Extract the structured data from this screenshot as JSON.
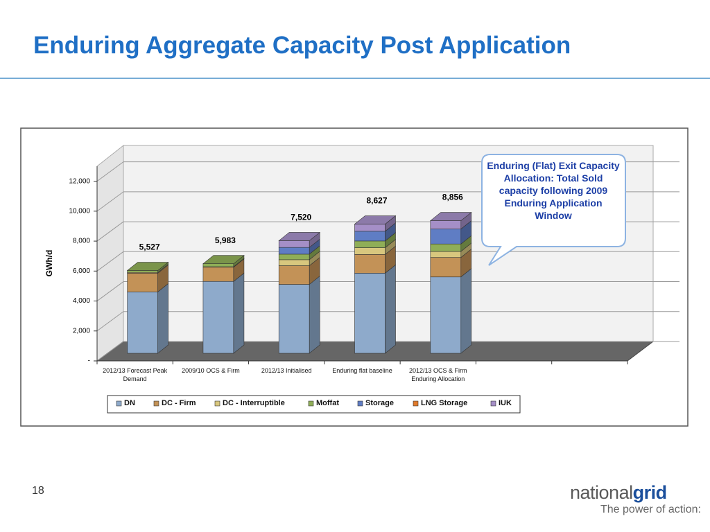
{
  "slide": {
    "title": "Enduring Aggregate Capacity Post Application",
    "page_number": "18",
    "logo": {
      "brand_light": "national",
      "brand_bold": "grid",
      "tagline": "The power of action:"
    }
  },
  "chart_data": {
    "type": "stacked_bar_3d",
    "y_label": "GWh/d",
    "callout": "Enduring (Flat) Exit Capacity Allocation: Total Sold capacity following 2009 Enduring Application Window",
    "categories": [
      "2012/13 Forecast Peak Demand",
      "2009/10 OCS & Firm",
      "2012/13 Initialised",
      "Enduring flat baseline",
      "2012/13 OCS & Firm Enduring Allocation",
      null,
      null
    ],
    "series": [
      {
        "name": "DN",
        "color": "#8eaacb",
        "values": [
          4100,
          4800,
          4600,
          5350,
          5100,
          null,
          null
        ]
      },
      {
        "name": "DC - Firm",
        "color": "#c39257",
        "values": [
          1250,
          950,
          1250,
          1250,
          1300,
          null,
          null
        ]
      },
      {
        "name": "DC - Interruptible",
        "color": "#d8c77e",
        "values": [
          50,
          30,
          400,
          450,
          400,
          null,
          null
        ]
      },
      {
        "name": "Moffat",
        "color": "#8fae57",
        "values": [
          127,
          203,
          370,
          450,
          500,
          null,
          null
        ]
      },
      {
        "name": "Storage",
        "color": "#5f7dc4",
        "values": [
          0,
          0,
          450,
          650,
          1000,
          null,
          null
        ]
      },
      {
        "name": "LNG Storage",
        "color": "#e07b2c",
        "values": [
          0,
          0,
          0,
          0,
          0,
          null,
          null
        ]
      },
      {
        "name": "IUK",
        "color": "#a58fc7",
        "values": [
          0,
          0,
          450,
          477,
          556,
          null,
          null
        ]
      }
    ],
    "totals": [
      5527,
      5983,
      7520,
      8627,
      8856,
      null,
      null
    ],
    "total_labels": [
      "5,527",
      "5,983",
      "7,520",
      "8,627",
      "8,856",
      null,
      null
    ],
    "ylim": [
      0,
      13000
    ],
    "yticks": [
      {
        "value": 0,
        "label": "-"
      },
      {
        "value": 2000,
        "label": "2,000"
      },
      {
        "value": 4000,
        "label": "4,000"
      },
      {
        "value": 6000,
        "label": "6,000"
      },
      {
        "value": 8000,
        "label": "8,000"
      },
      {
        "value": 10000,
        "label": "10,000"
      },
      {
        "value": 12000,
        "label": "12,000"
      }
    ],
    "grid": true
  }
}
